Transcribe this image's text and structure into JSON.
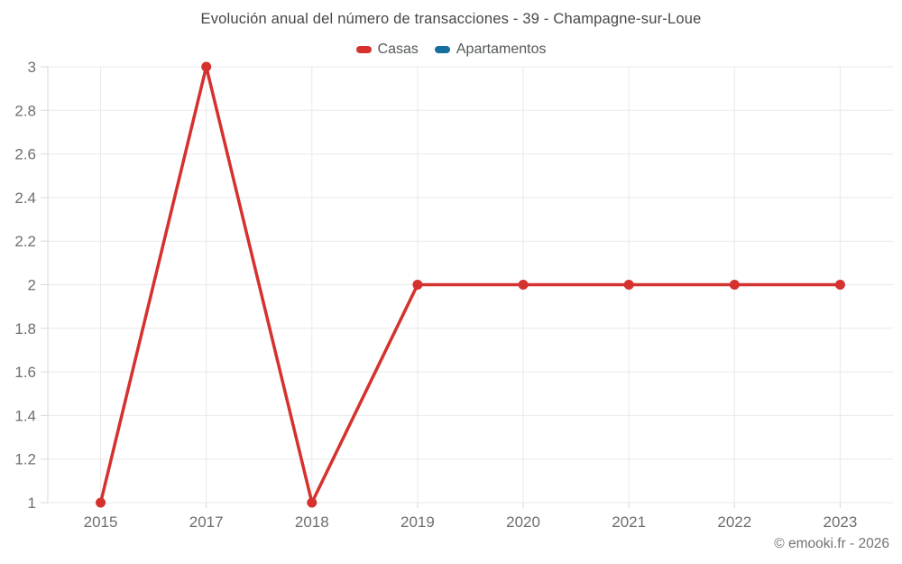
{
  "header": {
    "title": "Evolución anual del número de transacciones - 39 - Champagne-sur-Loue",
    "legend": [
      {
        "label": "Casas",
        "color": "#d5312e"
      },
      {
        "label": "Apartamentos",
        "color": "#15709e"
      }
    ]
  },
  "footer": {
    "credit": "© emooki.fr - 2026"
  },
  "chart_data": {
    "type": "line",
    "title": "Evolución anual del número de transacciones - 39 - Champagne-sur-Loue",
    "categories": [
      "2015",
      "2017",
      "2018",
      "2019",
      "2020",
      "2021",
      "2022",
      "2023"
    ],
    "series": [
      {
        "name": "Casas",
        "color": "#d5312e",
        "values": [
          1,
          3,
          1,
          2,
          2,
          2,
          2,
          2
        ]
      },
      {
        "name": "Apartamentos",
        "color": "#15709e",
        "values": []
      }
    ],
    "xlabel": "",
    "ylabel": "",
    "ylim": [
      1,
      3
    ],
    "yticks": [
      1,
      1.2,
      1.4,
      1.6,
      1.8,
      2,
      2.2,
      2.4,
      2.6,
      2.8,
      3
    ],
    "grid": true,
    "legend_position": "top",
    "marker": "circle"
  },
  "colors": {
    "grid": "#e9e9e9",
    "axis": "#d9d9d9",
    "tick_label": "#6e6e6e"
  }
}
